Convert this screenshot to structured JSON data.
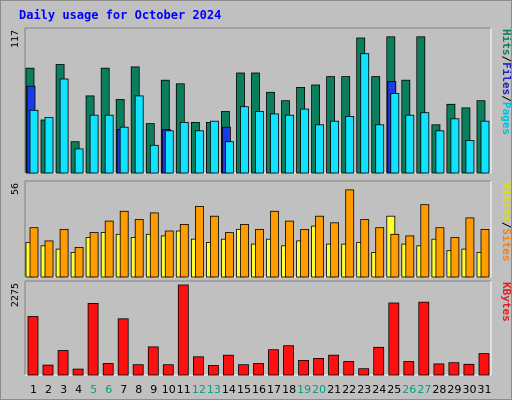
{
  "title": "Daily usage for October 2024",
  "chart_data": {
    "type": "bar",
    "title": "Daily usage for October 2024",
    "categories": [
      "1",
      "2",
      "3",
      "4",
      "5",
      "6",
      "7",
      "8",
      "9",
      "10",
      "11",
      "12",
      "13",
      "14",
      "15",
      "16",
      "17",
      "18",
      "19",
      "20",
      "21",
      "22",
      "23",
      "24",
      "25",
      "26",
      "27",
      "28",
      "29",
      "30",
      "31"
    ],
    "weekend_days": [
      "5",
      "6",
      "12",
      "13",
      "19",
      "20",
      "26",
      "27"
    ],
    "panels": [
      {
        "name": "top",
        "max_label": "117",
        "ylim": [
          0,
          117
        ],
        "series": [
          {
            "name": "Hits",
            "color": "#0b7f5d",
            "values": [
              87,
              44,
              90,
              26,
              64,
              87,
              61,
              88,
              41,
              77,
              74,
              42,
              42,
              51,
              83,
              83,
              67,
              60,
              71,
              73,
              80,
              80,
              112,
              80,
              113,
              77,
              113,
              40,
              57,
              54,
              60
            ]
          },
          {
            "name": "Files",
            "color": "#1a3de3",
            "values": [
              72,
              0,
              0,
              0,
              0,
              0,
              36,
              0,
              0,
              36,
              0,
              0,
              0,
              38,
              0,
              0,
              0,
              0,
              0,
              0,
              0,
              0,
              0,
              0,
              76,
              0,
              0,
              0,
              0,
              0,
              0
            ]
          },
          {
            "name": "Pages",
            "color": "#10e2ff",
            "values": [
              52,
              46,
              78,
              20,
              48,
              48,
              38,
              64,
              23,
              35,
              42,
              35,
              43,
              26,
              55,
              51,
              49,
              48,
              53,
              40,
              43,
              47,
              99,
              40,
              66,
              48,
              50,
              35,
              45,
              27,
              43
            ]
          }
        ],
        "legend": [
          "Pages",
          "Files",
          "Hits"
        ],
        "legend_colors": [
          "#00c0e0",
          "#2020c0",
          "#088060"
        ]
      },
      {
        "name": "middle",
        "max_label": "56",
        "ylim": [
          0,
          56
        ],
        "series": [
          {
            "name": "Visits",
            "color": "#ffff30",
            "values": [
              21,
              19,
              17,
              15,
              24,
              27,
              26,
              24,
              26,
              25,
              28,
              23,
              21,
              23,
              29,
              20,
              23,
              19,
              22,
              31,
              20,
              20,
              21,
              15,
              37,
              20,
              19,
              23,
              16,
              17,
              15
            ]
          },
          {
            "name": "Sites",
            "color": "#ff9c00",
            "values": [
              30,
              22,
              29,
              18,
              27,
              34,
              40,
              35,
              39,
              28,
              32,
              43,
              37,
              27,
              32,
              29,
              40,
              34,
              29,
              37,
              33,
              53,
              35,
              30,
              26,
              25,
              44,
              30,
              24,
              36,
              29
            ]
          }
        ],
        "legend": [
          "Sites",
          "Visits"
        ],
        "legend_colors": [
          "#f08020",
          "#e0e000"
        ]
      },
      {
        "name": "bottom",
        "max_label": "2275",
        "ylim": [
          0,
          2275
        ],
        "series": [
          {
            "name": "KBytes",
            "color": "#ff1010",
            "values": [
              1480,
              250,
              620,
              150,
              1810,
              290,
              1420,
              260,
              710,
              260,
              2275,
              460,
              240,
              500,
              260,
              290,
              640,
              740,
              370,
              420,
              500,
              340,
              160,
              700,
              1820,
              340,
              1840,
              280,
              310,
              270,
              540
            ]
          }
        ],
        "legend": [
          "KBytes"
        ],
        "legend_colors": [
          "#e02020"
        ]
      }
    ]
  }
}
